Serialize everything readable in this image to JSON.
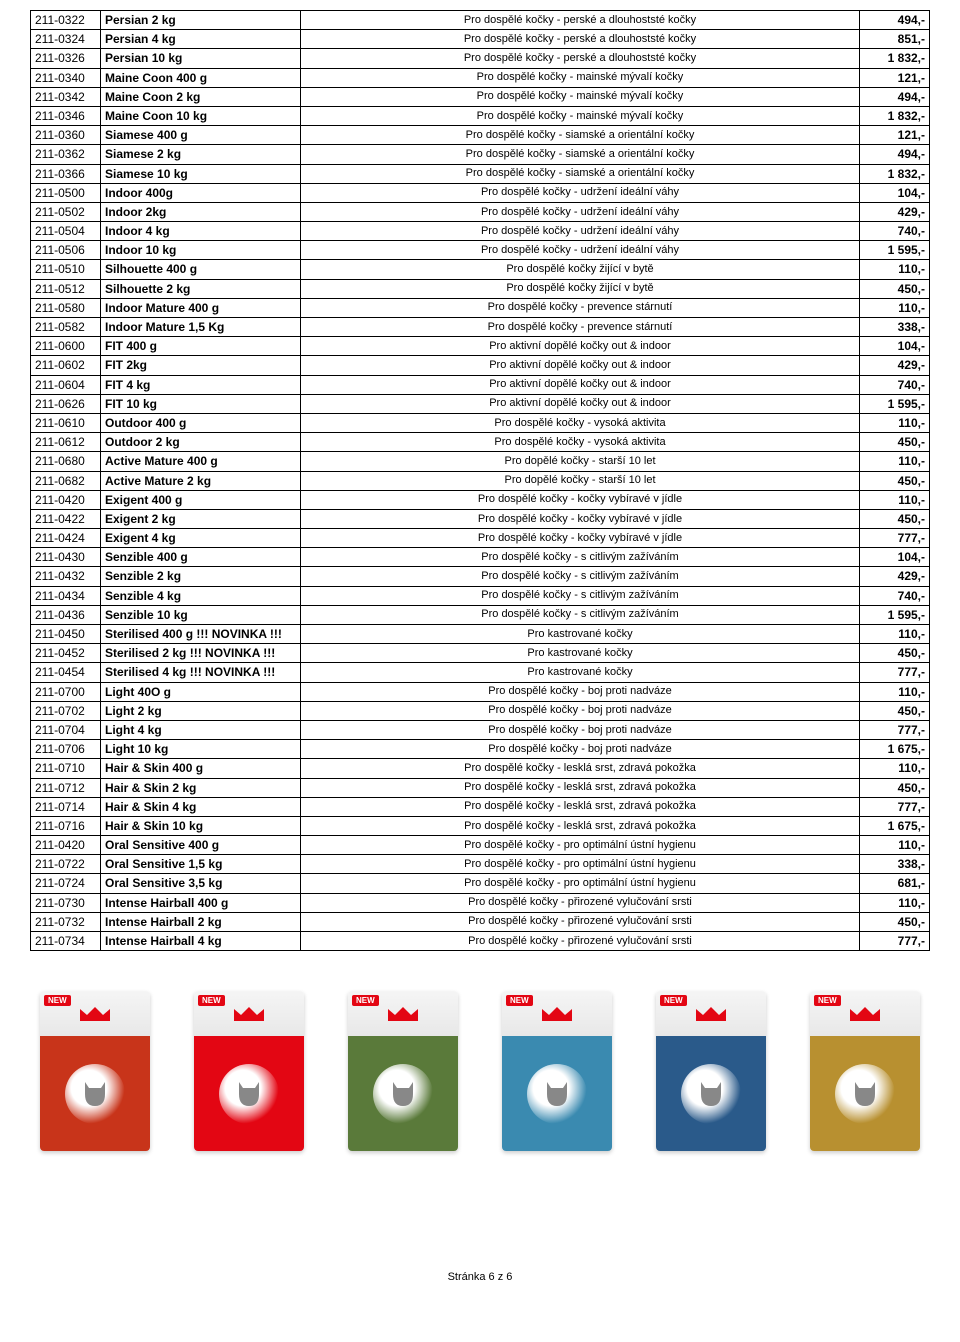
{
  "table": {
    "columns": [
      "code",
      "name",
      "desc",
      "price"
    ],
    "col_widths": [
      "70px",
      "200px",
      "auto",
      "70px"
    ],
    "rows": [
      [
        "211-0322",
        "Persian 2 kg",
        "Pro dospělé kočky - perské a dlouhoststé kočky",
        "494,-"
      ],
      [
        "211-0324",
        "Persian 4 kg",
        "Pro dospělé kočky - perské a dlouhoststé kočky",
        "851,-"
      ],
      [
        "211-0326",
        "Persian 10 kg",
        "Pro dospělé kočky - perské a dlouhoststé kočky",
        "1 832,-"
      ],
      [
        "211-0340",
        "Maine Coon 400 g",
        "Pro dospělé kočky - mainské mývalí kočky",
        "121,-"
      ],
      [
        "211-0342",
        "Maine Coon 2 kg",
        "Pro dospělé kočky - mainské mývalí kočky",
        "494,-"
      ],
      [
        "211-0346",
        "Maine Coon 10 kg",
        "Pro dospělé kočky - mainské mývalí kočky",
        "1 832,-"
      ],
      [
        "211-0360",
        "Siamese 400 g",
        "Pro dospělé kočky - siamské a orientální kočky",
        "121,-"
      ],
      [
        "211-0362",
        "Siamese 2 kg",
        "Pro dospělé kočky - siamské a orientální kočky",
        "494,-"
      ],
      [
        "211-0366",
        "Siamese 10 kg",
        "Pro dospělé kočky - siamské a orientální kočky",
        "1 832,-"
      ],
      [
        "211-0500",
        "Indoor 400g",
        "Pro dospělé kočky - udržení ideální váhy",
        "104,-"
      ],
      [
        "211-0502",
        "Indoor 2kg",
        "Pro dospělé kočky - udržení ideální váhy",
        "429,-"
      ],
      [
        "211-0504",
        "Indoor 4 kg",
        "Pro dospělé kočky - udržení ideální váhy",
        "740,-"
      ],
      [
        "211-0506",
        "Indoor 10 kg",
        "Pro dospělé kočky - udržení ideální váhy",
        "1 595,-"
      ],
      [
        "211-0510",
        "Silhouette 400 g",
        "Pro dospělé kočky žijící v bytě",
        "110,-"
      ],
      [
        "211-0512",
        "Silhouette 2 kg",
        "Pro dospělé kočky žijící v bytě",
        "450,-"
      ],
      [
        "211-0580",
        "Indoor Mature 400 g",
        "Pro dospělé kočky - prevence stárnutí",
        "110,-"
      ],
      [
        "211-0582",
        "Indoor Mature 1,5 Kg",
        "Pro dospělé kočky - prevence stárnutí",
        "338,-"
      ],
      [
        "211-0600",
        "FIT 400 g",
        "Pro aktivní dopělé kočky out & indoor",
        "104,-"
      ],
      [
        "211-0602",
        "FIT 2kg",
        "Pro aktivní dopělé kočky out & indoor",
        "429,-"
      ],
      [
        "211-0604",
        "FIT 4 kg",
        "Pro aktivní dopělé kočky out & indoor",
        "740,-"
      ],
      [
        "211-0626",
        "FIT 10 kg",
        "Pro aktivní dopělé kočky out & indoor",
        "1 595,-"
      ],
      [
        "211-0610",
        "Outdoor 400 g",
        "Pro dospělé kočky - vysoká aktivita",
        "110,-"
      ],
      [
        "211-0612",
        "Outdoor 2 kg",
        "Pro dospělé kočky - vysoká aktivita",
        "450,-"
      ],
      [
        "211-0680",
        "Active Mature 400 g",
        "Pro dopělé kočky - starší 10 let",
        "110,-"
      ],
      [
        "211-0682",
        "Active Mature 2 kg",
        "Pro dopělé kočky - starší 10 let",
        "450,-"
      ],
      [
        "211-0420",
        "Exigent 400 g",
        "Pro dospělé kočky - kočky vybíravé v jídle",
        "110,-"
      ],
      [
        "211-0422",
        "Exigent 2 kg",
        "Pro dospělé kočky - kočky vybíravé v jídle",
        "450,-"
      ],
      [
        "211-0424",
        "Exigent 4 kg",
        "Pro dospělé kočky - kočky vybíravé v jídle",
        "777,-"
      ],
      [
        "211-0430",
        "Senzible 400 g",
        "Pro dospělé kočky - s citlivým zažíváním",
        "104,-"
      ],
      [
        "211-0432",
        "Senzible 2 kg",
        "Pro dospělé kočky - s citlivým zažíváním",
        "429,-"
      ],
      [
        "211-0434",
        "Senzible 4 kg",
        "Pro dospělé kočky - s citlivým zažíváním",
        "740,-"
      ],
      [
        "211-0436",
        "Senzible 10 kg",
        "Pro dospělé kočky - s citlivým zažíváním",
        "1 595,-"
      ],
      [
        "211-0450",
        "Sterilised 400 g  !!! NOVINKA !!!",
        "Pro kastrované kočky",
        "110,-"
      ],
      [
        "211-0452",
        "Sterilised  2 kg !!! NOVINKA !!!",
        "Pro kastrované kočky",
        "450,-"
      ],
      [
        "211-0454",
        "Sterilised  4 kg !!! NOVINKA !!!",
        "Pro kastrované kočky",
        "777,-"
      ],
      [
        "211-0700",
        "Light   40O g",
        "Pro dospělé kočky - boj proti nadváze",
        "110,-"
      ],
      [
        "211-0702",
        "Light 2 kg",
        "Pro dospělé kočky - boj proti nadváze",
        "450,-"
      ],
      [
        "211-0704",
        "Light 4 kg",
        "Pro dospělé kočky - boj proti nadváze",
        "777,-"
      ],
      [
        "211-0706",
        "Light 10 kg",
        "Pro dospělé kočky - boj proti nadváze",
        "1 675,-"
      ],
      [
        "211-0710",
        "Hair & Skin 400 g",
        "Pro dospělé kočky - lesklá srst, zdravá pokožka",
        "110,-"
      ],
      [
        "211-0712",
        "Hair & Skin 2 kg",
        "Pro dospělé kočky - lesklá srst, zdravá pokožka",
        "450,-"
      ],
      [
        "211-0714",
        "Hair & Skin 4 kg",
        "Pro dospělé kočky - lesklá srst, zdravá pokožka",
        "777,-"
      ],
      [
        "211-0716",
        "Hair & Skin 10 kg",
        "Pro dospělé kočky - lesklá srst, zdravá pokožka",
        "1 675,-"
      ],
      [
        "211-0420",
        "Oral Sensitive 400 g",
        "Pro dospělé kočky - pro optimální ústní hygienu",
        "110,-"
      ],
      [
        "211-0722",
        "Oral Sensitive 1,5 kg",
        "Pro dospělé kočky - pro optimální ústní hygienu",
        "338,-"
      ],
      [
        "211-0724",
        "Oral Sensitive 3,5 kg",
        "Pro dospělé kočky - pro optimální ústní hygienu",
        "681,-"
      ],
      [
        "211-0730",
        "Intense Hairball 400 g",
        "Pro dospělé kočky - přirozené vylučování srsti",
        "110,-"
      ],
      [
        "211-0732",
        "Intense Hairball 2 kg",
        "Pro dospělé kočky - přirozené vylučování srsti",
        "450,-"
      ],
      [
        "211-0734",
        "Intense Hairball 4 kg",
        "Pro dospělé kočky - přirozené vylučování srsti",
        "777,-"
      ]
    ]
  },
  "products": {
    "new_label": "NEW",
    "bags": [
      {
        "bottom_color": "#c8341a"
      },
      {
        "bottom_color": "#e30613"
      },
      {
        "bottom_color": "#5a7a3a"
      },
      {
        "bottom_color": "#3a8ab0"
      },
      {
        "bottom_color": "#2a5a8a"
      },
      {
        "bottom_color": "#b89030"
      }
    ],
    "crown_color": "#e30613"
  },
  "footer": "Stránka 6 z 6"
}
